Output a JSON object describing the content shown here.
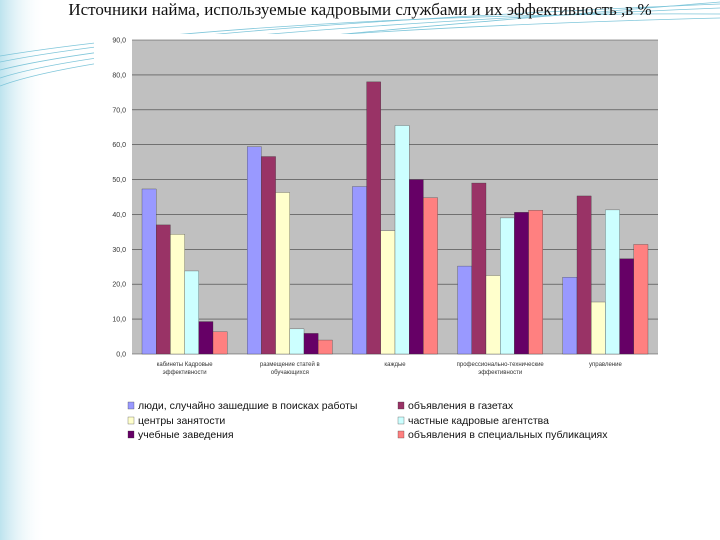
{
  "title": "Источники найма, используемые кадровыми службами и их эффективность ,в %",
  "chart_data": {
    "type": "bar",
    "ylim": [
      0,
      90
    ],
    "yticks": [
      "0,0",
      "10,0",
      "20,0",
      "30,0",
      "40,0",
      "50,0",
      "60,0",
      "70,0",
      "80,0",
      "90,0"
    ],
    "grid": true,
    "legend_position": "bottom",
    "categories": [
      [
        "кабинеты Кадровые",
        "эффективности"
      ],
      [
        "размещение статей в",
        "обучающихся"
      ],
      [
        "каждые"
      ],
      [
        "профессионально-технические",
        "эффективности"
      ],
      [
        "управление"
      ]
    ],
    "series": [
      {
        "name": "люди, случайно зашедшие в поисках работы",
        "color": "#9999ff",
        "values": [
          47.3,
          59.4,
          48.0,
          25.2,
          22.0
        ]
      },
      {
        "name": "объявления в газетах",
        "color": "#993366",
        "values": [
          37.0,
          56.6,
          78.0,
          49.0,
          45.3
        ]
      },
      {
        "name": "центры занятости",
        "color": "#ffffcc",
        "values": [
          34.3,
          46.3,
          35.3,
          22.5,
          14.9
        ]
      },
      {
        "name": "частные кадровые агентства",
        "color": "#ccffff",
        "values": [
          23.8,
          7.2,
          65.5,
          39.0,
          41.3
        ]
      },
      {
        "name": "учебные заведения",
        "color": "#660066",
        "values": [
          9.3,
          5.9,
          50.0,
          40.6,
          27.3
        ]
      },
      {
        "name": "объявления в специальных публикациях",
        "color": "#ff8080",
        "values": [
          6.4,
          4.0,
          44.8,
          41.2,
          31.4
        ]
      }
    ]
  }
}
